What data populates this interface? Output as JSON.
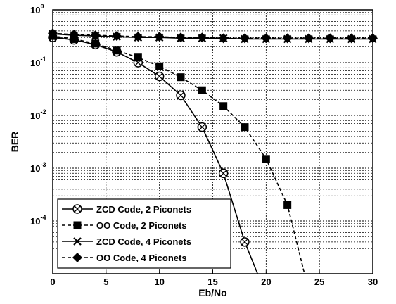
{
  "chart_data": {
    "type": "line",
    "xlabel": "Eb/No",
    "ylabel": "BER",
    "xlim": [
      0,
      30
    ],
    "ylim": [
      1e-05,
      1
    ],
    "yscale": "log",
    "grid": true,
    "legend_position": "bottom-left",
    "x_ticks": [
      "0",
      "5",
      "10",
      "15",
      "20",
      "25",
      "30"
    ],
    "y_ticks": [
      {
        "base": "10",
        "exp": "0"
      },
      {
        "base": "10",
        "exp": "-1"
      },
      {
        "base": "10",
        "exp": "-2"
      },
      {
        "base": "10",
        "exp": "-3"
      },
      {
        "base": "10",
        "exp": "-4"
      }
    ],
    "series": [
      {
        "name": "ZCD Code, 2 Piconets",
        "marker": "circle-x",
        "dash": "solid",
        "x": [
          0,
          2,
          4,
          6,
          8,
          10,
          12,
          14,
          16,
          18,
          19.2
        ],
        "y": [
          0.3,
          0.27,
          0.22,
          0.16,
          0.1,
          0.055,
          0.024,
          0.006,
          0.0008,
          4e-05,
          1e-05
        ]
      },
      {
        "name": "OO Code, 2 Piconets",
        "marker": "square",
        "dash": "dashed",
        "x": [
          0,
          2,
          4,
          6,
          8,
          10,
          12,
          14,
          16,
          18,
          20,
          22,
          23.6
        ],
        "y": [
          0.32,
          0.28,
          0.23,
          0.17,
          0.125,
          0.085,
          0.053,
          0.03,
          0.015,
          0.006,
          0.0015,
          0.0002,
          1e-05
        ]
      },
      {
        "name": "ZCD Code, 4 Piconets",
        "marker": "x",
        "dash": "solid",
        "x": [
          0,
          2,
          4,
          6,
          8,
          10,
          12,
          14,
          16,
          18,
          20,
          22,
          24,
          26,
          28,
          30
        ],
        "y": [
          0.35,
          0.33,
          0.32,
          0.31,
          0.3,
          0.3,
          0.29,
          0.29,
          0.29,
          0.28,
          0.28,
          0.28,
          0.28,
          0.28,
          0.28,
          0.28
        ]
      },
      {
        "name": "OO Code, 4 Piconets",
        "marker": "diamond",
        "dash": "dashed",
        "x": [
          0,
          2,
          4,
          6,
          8,
          10,
          12,
          14,
          16,
          18,
          20,
          22,
          24,
          26,
          28,
          30
        ],
        "y": [
          0.36,
          0.34,
          0.33,
          0.32,
          0.31,
          0.31,
          0.3,
          0.3,
          0.29,
          0.29,
          0.29,
          0.29,
          0.29,
          0.29,
          0.29,
          0.29
        ]
      }
    ]
  }
}
